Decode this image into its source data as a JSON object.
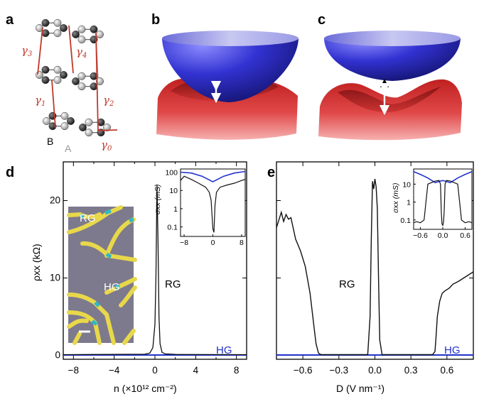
{
  "panels": {
    "a": {
      "letter": "a",
      "gamma_labels": [
        "γ3",
        "γ4",
        "γ1",
        "γ2",
        "γ0"
      ],
      "sublattice_b": "B",
      "sublattice_a": "A"
    },
    "b": {
      "letter": "b"
    },
    "c": {
      "letter": "c"
    },
    "d": {
      "letter": "d",
      "label_rg": "RG",
      "label_hg": "HG",
      "micrograph": {
        "label_rg": "RG",
        "label_hg": "HG"
      },
      "ylabel": "ρxx (kΩ)",
      "xlabel": "n (×10¹² cm⁻²)",
      "inset_ylabel": "σxx (mS)"
    },
    "e": {
      "letter": "e",
      "label_rg": "RG",
      "label_hg": "HG",
      "xlabel": "D (V nm⁻¹)",
      "inset_ylabel": "σxx (mS)"
    }
  },
  "colors": {
    "rg_curve": "#111111",
    "hg_curve": "#2233cc",
    "gamma": "#c0392b",
    "cone_top": "#3333cc",
    "cone_bottom": "#d63a3a"
  },
  "chart_data": [
    {
      "type": "line",
      "panel": "d",
      "xlabel": "n (×10¹² cm⁻²)",
      "ylabel": "ρxx (kΩ)",
      "xlim": [
        -9,
        9
      ],
      "ylim": [
        -0.5,
        25
      ],
      "xticks": [
        -8,
        -4,
        0,
        4,
        8
      ],
      "xtick_labels": [
        "−8",
        "−4",
        "0",
        "4",
        "8"
      ],
      "yticks": [
        0,
        10,
        20
      ],
      "ytick_labels": [
        "0",
        "10",
        "20"
      ],
      "series": [
        {
          "name": "RG",
          "x": [
            -9,
            -1,
            -0.5,
            -0.2,
            0,
            0.1,
            0.2,
            0.3,
            0.4,
            0.5,
            0.7,
            1,
            2,
            9
          ],
          "y": [
            0.1,
            0.15,
            0.3,
            1,
            4,
            10,
            22,
            15,
            5,
            1.5,
            0.4,
            0.2,
            0.12,
            0.1
          ]
        },
        {
          "name": "HG",
          "x": [
            -9,
            9
          ],
          "y": [
            0.05,
            0.05
          ]
        }
      ],
      "inset": {
        "ylabel": "σxx (mS)",
        "yscale": "log",
        "xlim": [
          -9,
          9
        ],
        "ylim": [
          0.03,
          150
        ],
        "xticks": [
          -8,
          0,
          8
        ],
        "xtick_labels": [
          "−8",
          "0",
          "8"
        ],
        "yticks": [
          0.1,
          1,
          10,
          100
        ],
        "ytick_labels": [
          "0.1",
          "1",
          "10",
          "100"
        ],
        "series": [
          {
            "name": "RG",
            "x": [
              -9,
              -8,
              -6,
              -4,
              -2,
              -1,
              -0.5,
              0,
              0.3,
              0.6,
              1,
              2,
              4,
              6,
              8,
              9
            ],
            "y": [
              35,
              60,
              40,
              25,
              15,
              8,
              3,
              0.08,
              0.05,
              1.5,
              8,
              15,
              20,
              25,
              35,
              40
            ]
          },
          {
            "name": "HG",
            "x": [
              -9,
              -6,
              -3,
              0,
              3,
              6,
              9
            ],
            "y": [
              100,
              90,
              60,
              30,
              60,
              90,
              110
            ]
          }
        ]
      }
    },
    {
      "type": "line",
      "panel": "e",
      "xlabel": "D (V nm⁻¹)",
      "xlim": [
        -0.82,
        0.82
      ],
      "ylim": [
        -0.5,
        25
      ],
      "xticks": [
        -0.6,
        -0.3,
        0,
        0.3,
        0.6
      ],
      "xtick_labels": [
        "−0.6",
        "−0.3",
        "0.0",
        "0.3",
        "0.6"
      ],
      "series": [
        {
          "name": "RG",
          "x": [
            -0.82,
            -0.78,
            -0.76,
            -0.74,
            -0.72,
            -0.7,
            -0.66,
            -0.62,
            -0.58,
            -0.54,
            -0.51,
            -0.49,
            -0.47,
            -0.45,
            -0.06,
            -0.04,
            -0.03,
            -0.02,
            -0.01,
            0.0,
            0.01,
            0.02,
            0.03,
            0.04,
            0.06,
            0.48,
            0.5,
            0.51,
            0.52,
            0.54,
            0.56,
            0.58,
            0.6,
            0.62,
            0.65,
            0.7,
            0.75,
            0.8,
            0.82
          ],
          "y": [
            16.5,
            18.5,
            17.3,
            18.2,
            17.6,
            17.8,
            15,
            13.5,
            11.5,
            8,
            4,
            1.5,
            0.3,
            0.1,
            0.1,
            5,
            15,
            22.5,
            21.5,
            22.8,
            21.8,
            19,
            10,
            2,
            0.1,
            0.1,
            0.5,
            2.5,
            5,
            7,
            8,
            8.3,
            8.5,
            8.7,
            9.2,
            9.6,
            10.1,
            10.6,
            10.8
          ]
        },
        {
          "name": "HG",
          "x": [
            -0.82,
            0.82
          ],
          "y": [
            0.05,
            0.05
          ]
        }
      ],
      "inset": {
        "ylabel": "σxx (mS)",
        "yscale": "log",
        "xlim": [
          -0.78,
          0.78
        ],
        "ylim": [
          0.03,
          70
        ],
        "xticks": [
          -0.6,
          0,
          0.6
        ],
        "xtick_labels": [
          "−0.6",
          "0.0",
          "0.6"
        ],
        "yticks": [
          0.1,
          1,
          10
        ],
        "ytick_labels": [
          "0.1",
          "1",
          "10"
        ],
        "series": [
          {
            "name": "RG",
            "x": [
              -0.78,
              -0.7,
              -0.6,
              -0.5,
              -0.45,
              -0.4,
              -0.2,
              -0.1,
              -0.06,
              -0.04,
              -0.02,
              0,
              0.02,
              0.04,
              0.06,
              0.1,
              0.2,
              0.4,
              0.45,
              0.5,
              0.6,
              0.7,
              0.78
            ],
            "y": [
              0.07,
              0.08,
              0.07,
              0.1,
              1,
              10,
              15,
              16,
              10,
              0.3,
              0.06,
              0.05,
              0.08,
              0.4,
              10,
              16,
              15,
              10,
              1,
              0.1,
              0.07,
              0.08,
              0.07
            ]
          },
          {
            "name": "HG",
            "x": [
              -0.78,
              -0.6,
              -0.4,
              -0.2,
              -0.1,
              0,
              0.1,
              0.2,
              0.4,
              0.6,
              0.78
            ],
            "y": [
              50,
              35,
              22,
              12,
              14,
              16,
              14,
              12,
              22,
              35,
              50
            ]
          }
        ]
      }
    }
  ]
}
